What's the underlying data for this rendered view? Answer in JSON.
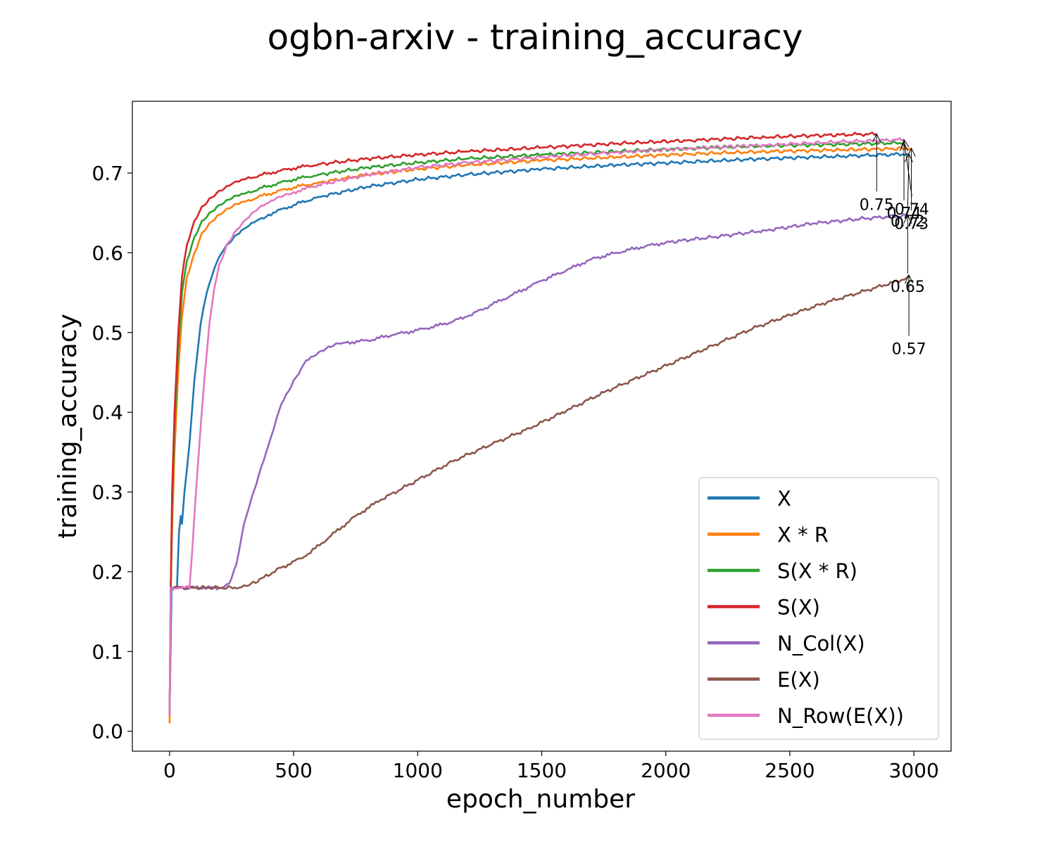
{
  "chart_data": {
    "type": "line",
    "title": "ogbn-arxiv - training_accuracy",
    "xlabel": "epoch_number",
    "ylabel": "training_accuracy",
    "xlim": [
      -150,
      3150
    ],
    "ylim": [
      -0.025,
      0.79
    ],
    "xticks": [
      "0",
      "500",
      "1000",
      "1500",
      "2000",
      "2500",
      "3000"
    ],
    "yticks": [
      "0.0",
      "0.1",
      "0.2",
      "0.3",
      "0.4",
      "0.5",
      "0.6",
      "0.7"
    ],
    "grid": false,
    "legend_position": "lower-right",
    "series": [
      {
        "name": "X",
        "color": "#1f77b4",
        "x": [
          0,
          8,
          30,
          38,
          45,
          50,
          60,
          80,
          100,
          125,
          150,
          180,
          210,
          250,
          300,
          350,
          400,
          500,
          600,
          800,
          1000,
          1200,
          1500,
          1800,
          2100,
          2400,
          2700,
          2980
        ],
        "y": [
          0.02,
          0.18,
          0.18,
          0.25,
          0.27,
          0.26,
          0.3,
          0.36,
          0.44,
          0.51,
          0.55,
          0.58,
          0.6,
          0.615,
          0.63,
          0.64,
          0.648,
          0.66,
          0.67,
          0.683,
          0.692,
          0.698,
          0.705,
          0.71,
          0.714,
          0.718,
          0.721,
          0.724
        ]
      },
      {
        "name": "X * R",
        "color": "#ff7f0e",
        "x": [
          0,
          5,
          10,
          20,
          35,
          50,
          70,
          100,
          130,
          160,
          200,
          250,
          300,
          400,
          500,
          600,
          800,
          1000,
          1200,
          1500,
          1800,
          2100,
          2400,
          2700,
          2990
        ],
        "y": [
          0.01,
          0.18,
          0.25,
          0.35,
          0.45,
          0.52,
          0.57,
          0.6,
          0.625,
          0.637,
          0.648,
          0.657,
          0.664,
          0.674,
          0.682,
          0.688,
          0.698,
          0.705,
          0.71,
          0.716,
          0.72,
          0.724,
          0.727,
          0.729,
          0.731
        ]
      },
      {
        "name": "S(X * R)",
        "color": "#2ca02c",
        "x": [
          0,
          5,
          10,
          20,
          35,
          50,
          70,
          100,
          130,
          160,
          200,
          250,
          300,
          400,
          500,
          600,
          800,
          1000,
          1200,
          1500,
          1800,
          2100,
          2400,
          2700,
          2960
        ],
        "y": [
          0.02,
          0.18,
          0.28,
          0.38,
          0.48,
          0.55,
          0.59,
          0.62,
          0.64,
          0.65,
          0.66,
          0.668,
          0.674,
          0.684,
          0.692,
          0.698,
          0.707,
          0.713,
          0.718,
          0.723,
          0.727,
          0.731,
          0.734,
          0.736,
          0.738
        ]
      },
      {
        "name": "S(X)",
        "color": "#d62728",
        "x": [
          0,
          5,
          10,
          20,
          35,
          50,
          70,
          100,
          130,
          160,
          200,
          250,
          300,
          400,
          500,
          600,
          800,
          1000,
          1200,
          1500,
          1800,
          2100,
          2400,
          2700,
          2850
        ],
        "y": [
          0.02,
          0.18,
          0.3,
          0.4,
          0.5,
          0.57,
          0.61,
          0.64,
          0.658,
          0.668,
          0.678,
          0.686,
          0.692,
          0.7,
          0.706,
          0.711,
          0.718,
          0.723,
          0.727,
          0.732,
          0.737,
          0.741,
          0.745,
          0.748,
          0.749
        ]
      },
      {
        "name": "N_Col(X)",
        "color": "#9467bd",
        "x": [
          0,
          5,
          200,
          240,
          270,
          300,
          350,
          400,
          450,
          500,
          550,
          600,
          650,
          700,
          800,
          900,
          1000,
          1100,
          1200,
          1300,
          1400,
          1500,
          1600,
          1700,
          1800,
          1900,
          2000,
          2200,
          2400,
          2600,
          2800,
          2975
        ],
        "y": [
          0.02,
          0.18,
          0.18,
          0.185,
          0.21,
          0.26,
          0.31,
          0.36,
          0.41,
          0.44,
          0.465,
          0.475,
          0.482,
          0.487,
          0.49,
          0.497,
          0.503,
          0.51,
          0.52,
          0.535,
          0.55,
          0.565,
          0.578,
          0.592,
          0.6,
          0.607,
          0.613,
          0.62,
          0.628,
          0.637,
          0.643,
          0.647
        ]
      },
      {
        "name": "E(X)",
        "color": "#8c564b",
        "x": [
          0,
          5,
          280,
          320,
          380,
          450,
          550,
          650,
          750,
          850,
          1000,
          1150,
          1300,
          1450,
          1600,
          1750,
          1900,
          2050,
          2200,
          2350,
          2500,
          2650,
          2800,
          2950,
          2980
        ],
        "y": [
          0.02,
          0.18,
          0.18,
          0.183,
          0.193,
          0.205,
          0.22,
          0.245,
          0.27,
          0.29,
          0.315,
          0.34,
          0.36,
          0.38,
          0.402,
          0.425,
          0.445,
          0.465,
          0.485,
          0.505,
          0.522,
          0.538,
          0.552,
          0.566,
          0.572
        ]
      },
      {
        "name": "N_Row(E(X))",
        "color": "#e377c2",
        "x": [
          0,
          5,
          80,
          90,
          100,
          120,
          140,
          160,
          180,
          200,
          230,
          260,
          300,
          350,
          400,
          450,
          500,
          600,
          800,
          1000,
          1200,
          1500,
          1800,
          2100,
          2400,
          2700,
          2960
        ],
        "y": [
          0.02,
          0.18,
          0.18,
          0.22,
          0.27,
          0.36,
          0.44,
          0.51,
          0.555,
          0.585,
          0.61,
          0.625,
          0.64,
          0.653,
          0.663,
          0.67,
          0.676,
          0.685,
          0.698,
          0.707,
          0.713,
          0.72,
          0.726,
          0.731,
          0.735,
          0.739,
          0.742
        ]
      }
    ],
    "annotations": [
      {
        "text": "0.72",
        "x": 2980,
        "y": 0.724,
        "text_x": 2975,
        "text_y": 0.64
      },
      {
        "text": "0.73",
        "x": 2990,
        "y": 0.731,
        "text_x": 2990,
        "text_y": 0.637
      },
      {
        "text": "0.74",
        "x": 2960,
        "y": 0.738,
        "text_x": 2960,
        "text_y": 0.65
      },
      {
        "text": "0.75",
        "x": 2850,
        "y": 0.749,
        "text_x": 2850,
        "text_y": 0.661
      },
      {
        "text": "0.74",
        "x": 2960,
        "y": 0.742,
        "text_x": 2992,
        "text_y": 0.655
      },
      {
        "text": "0.65",
        "x": 2975,
        "y": 0.647,
        "text_x": 2975,
        "text_y": 0.558
      },
      {
        "text": "0.57",
        "x": 2980,
        "y": 0.572,
        "text_x": 2980,
        "text_y": 0.48
      }
    ]
  }
}
